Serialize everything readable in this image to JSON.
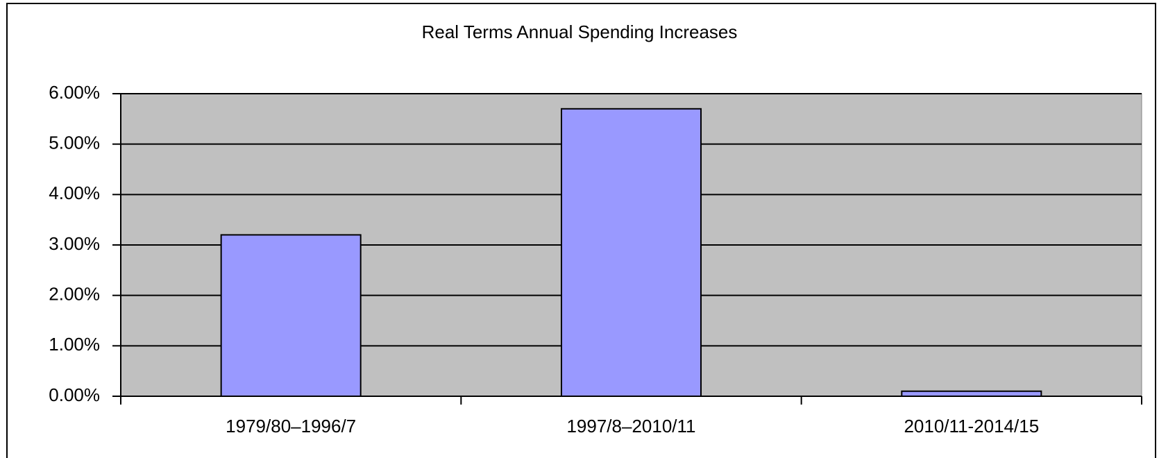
{
  "chart_data": {
    "type": "bar",
    "title": "Real Terms Annual Spending Increases",
    "categories": [
      "1979/80–1996/7",
      "1997/8–2010/11",
      "2010/11-2014/15"
    ],
    "values": [
      3.2,
      5.7,
      0.1
    ],
    "color": "#9999ff",
    "ylim": [
      0,
      6
    ],
    "yticks": [
      {
        "value": 0,
        "label": "0.00%"
      },
      {
        "value": 1,
        "label": "1.00%"
      },
      {
        "value": 2,
        "label": "2.00%"
      },
      {
        "value": 3,
        "label": "3.00%"
      },
      {
        "value": 4,
        "label": "4.00%"
      },
      {
        "value": 5,
        "label": "5.00%"
      },
      {
        "value": 6,
        "label": "6.00%"
      }
    ],
    "grid": true
  }
}
